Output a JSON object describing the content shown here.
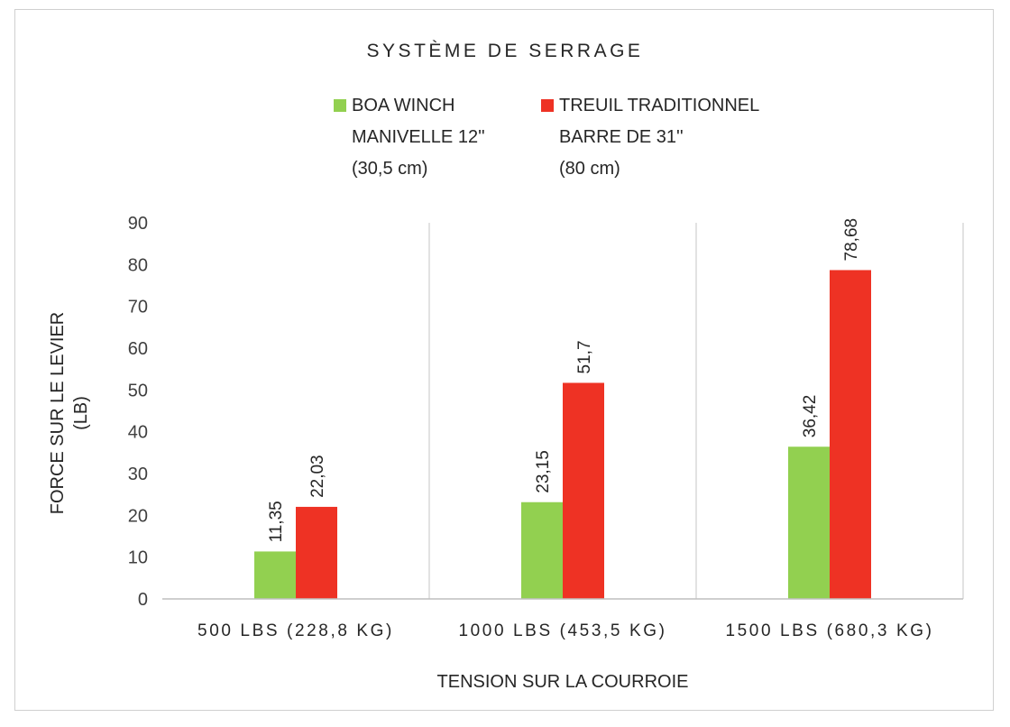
{
  "chart_data": {
    "type": "bar",
    "title": "SYSTÈME DE SERRAGE",
    "xlabel": "TENSION SUR LA COURROIE",
    "ylabel": [
      "FORCE SUR LE LEVIER",
      "(LB)"
    ],
    "categories": [
      "500 LBS (228,8 KG)",
      "1000 LBS (453,5 KG)",
      "1500 LBS (680,3 KG)"
    ],
    "series": [
      {
        "name": [
          "BOA WINCH",
          "MANIVELLE 12''",
          "(30,5 cm)"
        ],
        "values": [
          11.35,
          23.15,
          36.42
        ],
        "labels": [
          "11,35",
          "23,15",
          "36,42"
        ],
        "color": "#92d050"
      },
      {
        "name": [
          "TREUIL TRADITIONNEL",
          "BARRE DE 31''",
          "(80 cm)"
        ],
        "values": [
          22.03,
          51.7,
          78.68
        ],
        "labels": [
          "22,03",
          "51,7",
          "78,68"
        ],
        "color": "#ee3224"
      }
    ],
    "ylim": [
      0,
      90
    ],
    "yticks": [
      0,
      10,
      20,
      30,
      40,
      50,
      60,
      70,
      80,
      90
    ],
    "grid": "vertical category separators",
    "legend_position": "top"
  }
}
